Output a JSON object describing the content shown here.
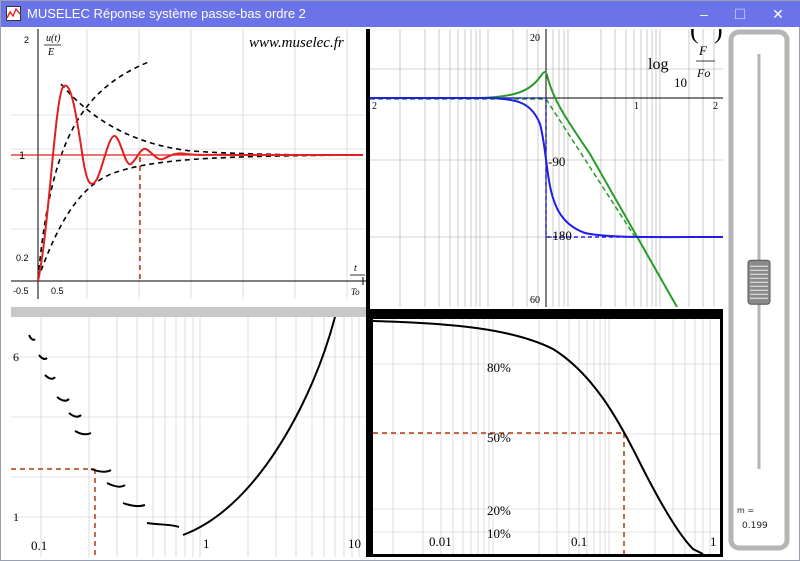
{
  "window": {
    "title": "MUSELEC Réponse système passe-bas ordre 2",
    "buttons": {
      "minimize": "–",
      "maximize": "☐",
      "close": "✕"
    }
  },
  "step_plot": {
    "watermark": "www.muselec.fr",
    "y_label_num": "u(t)",
    "y_label_den": "E",
    "x_label_num": "t",
    "x_label_den": "To",
    "ticks": {
      "y_top": "2",
      "y_one": "1",
      "y_low": "0.2",
      "x_neg": "-0.5",
      "x_half": "0.5"
    }
  },
  "bode_plot": {
    "axis_label_log": "log",
    "axis_label_10": "10",
    "axis_label_frac_num": "F",
    "axis_label_frac_den": "Fo",
    "ticks": {
      "x_left": "2",
      "y_top": "20",
      "x_one": "1",
      "x_right": "2",
      "phase_90": "-90",
      "phase_180": "-180",
      "bottom": "60"
    }
  },
  "decrement_plot": {
    "ticks": {
      "y_six": "6",
      "y_one": "1",
      "x_01": "0.1",
      "x_1": "1",
      "x_10": "10"
    }
  },
  "overshoot_plot": {
    "ticks": {
      "p80": "80%",
      "p50": "50%",
      "p20": "20%",
      "p10": "10%",
      "x_001": "0.01",
      "x_01": "0.1",
      "x_1": "1"
    }
  },
  "slider": {
    "label": "m =",
    "value": "0.199",
    "position_fraction": 0.55
  },
  "colors": {
    "titlebar": "#6a73e8",
    "step_red": "#e02020",
    "asymptote_brown": "#b03a10",
    "magnitude_green": "#2a9a2a",
    "phase_blue": "#1e1ee8"
  }
}
